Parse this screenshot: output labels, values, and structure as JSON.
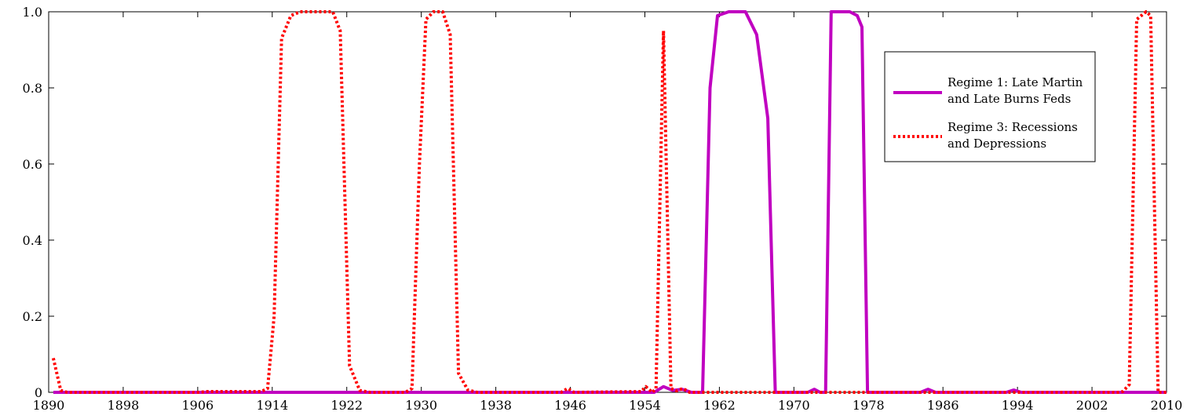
{
  "chart_data": {
    "type": "line",
    "xlim": [
      1890,
      2010
    ],
    "ylim": [
      0,
      1
    ],
    "x_ticks": [
      "1890",
      "1898",
      "1906",
      "1914",
      "1922",
      "1930",
      "1938",
      "1946",
      "1954",
      "1962",
      "1970",
      "1978",
      "1986",
      "1994",
      "2002",
      "2010"
    ],
    "y_ticks": [
      "0",
      "0.2",
      "0.4",
      "0.6",
      "0.8",
      "1.0"
    ],
    "legend_position": "top-right",
    "series": [
      {
        "name": "Regime 1:  Late Martin and Late Burns Feds",
        "legend_lines": [
          "Regime 1:  Late Martin",
          "and Late Burns Feds"
        ],
        "color": "#c000c0",
        "style": "solid",
        "points": [
          [
            1890.5,
            0
          ],
          [
            1955,
            0
          ],
          [
            1956,
            0.015
          ],
          [
            1957,
            0.005
          ],
          [
            1958,
            0.008
          ],
          [
            1959,
            0
          ],
          [
            1960.2,
            0
          ],
          [
            1961,
            0.8
          ],
          [
            1961.8,
            0.99
          ],
          [
            1963,
            1
          ],
          [
            1964.8,
            1
          ],
          [
            1966,
            0.94
          ],
          [
            1967.2,
            0.72
          ],
          [
            1968,
            0
          ],
          [
            1971.5,
            0
          ],
          [
            1972.2,
            0.008
          ],
          [
            1972.8,
            0
          ],
          [
            1973.4,
            0
          ],
          [
            1974,
            1
          ],
          [
            1976,
            1
          ],
          [
            1976.8,
            0.99
          ],
          [
            1977.3,
            0.96
          ],
          [
            1977.9,
            0
          ],
          [
            1983.6,
            0
          ],
          [
            1984.4,
            0.008
          ],
          [
            1985.2,
            0
          ],
          [
            1992.8,
            0
          ],
          [
            1993.6,
            0.006
          ],
          [
            1994.4,
            0
          ],
          [
            2010,
            0
          ]
        ]
      },
      {
        "name": "Regime 3: Recessions and Depressions",
        "legend_lines": [
          "Regime 3: Recessions",
          "and Depressions"
        ],
        "color": "#ff0000",
        "style": "dotted",
        "points": [
          [
            1890.5,
            0.09
          ],
          [
            1891.3,
            0.005
          ],
          [
            1892,
            0
          ],
          [
            1906,
            0
          ],
          [
            1907,
            0.002
          ],
          [
            1912.8,
            0.002
          ],
          [
            1913.5,
            0.01
          ],
          [
            1914.2,
            0.2
          ],
          [
            1915,
            0.93
          ],
          [
            1916,
            0.99
          ],
          [
            1917,
            1
          ],
          [
            1920.5,
            1
          ],
          [
            1921.3,
            0.95
          ],
          [
            1922.3,
            0.07
          ],
          [
            1923.4,
            0.005
          ],
          [
            1924.5,
            0
          ],
          [
            1928.3,
            0
          ],
          [
            1929,
            0.01
          ],
          [
            1929.8,
            0.6
          ],
          [
            1930.5,
            0.98
          ],
          [
            1931.3,
            1
          ],
          [
            1932.3,
            1
          ],
          [
            1933.1,
            0.94
          ],
          [
            1934,
            0.05
          ],
          [
            1935,
            0.006
          ],
          [
            1936,
            0
          ],
          [
            1945,
            0
          ],
          [
            1945.7,
            0.01
          ],
          [
            1946.4,
            0
          ],
          [
            1953.6,
            0.002
          ],
          [
            1954.1,
            0.015
          ],
          [
            1954.8,
            0
          ],
          [
            1955.2,
            0.01
          ],
          [
            1956,
            0.95
          ],
          [
            1956.8,
            0.01
          ],
          [
            1957.4,
            0.004
          ],
          [
            1958.1,
            0.01
          ],
          [
            1958.8,
            0
          ],
          [
            2004.8,
            0
          ],
          [
            2005.3,
            0.002
          ],
          [
            2006,
            0.02
          ],
          [
            2006.8,
            0.98
          ],
          [
            2007.8,
            1
          ],
          [
            2008.3,
            0.99
          ],
          [
            2009.1,
            0
          ],
          [
            2010,
            0
          ]
        ]
      }
    ]
  }
}
